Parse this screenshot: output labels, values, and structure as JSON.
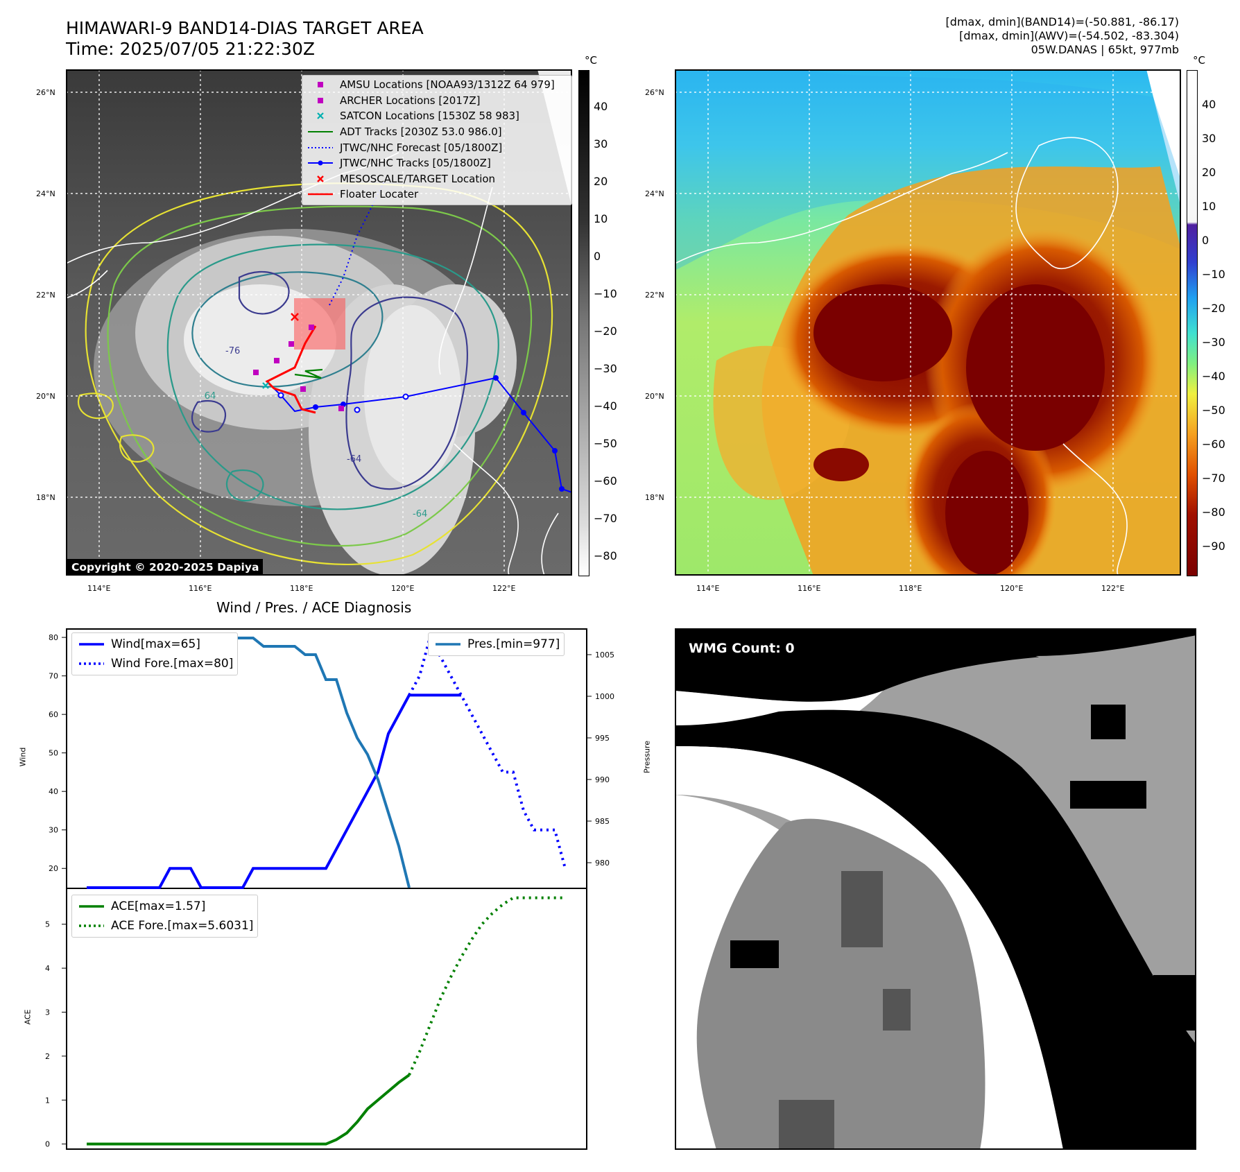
{
  "header": {
    "title_line1": "HIMAWARI-9 BAND14-DIAS TARGET AREA",
    "title_line2": "Time: 2025/07/05 21:22:30Z",
    "stats_line1": "[dmax, dmin](BAND14)=(-50.881, -86.17)",
    "stats_line2": "[dmax, dmin](AWV)=(-54.502, -83.304)",
    "stats_line3": "05W.DANAS | 65kt, 977mb"
  },
  "ir_panel": {
    "lat_labels": [
      "26°N",
      "24°N",
      "22°N",
      "20°N",
      "18°N"
    ],
    "lon_labels": [
      "114°E",
      "116°E",
      "118°E",
      "120°E",
      "122°E"
    ],
    "copyright": "Copyright © 2020-2025 Dapiya",
    "colorbar_unit": "°C",
    "colorbar_ticks": [
      "40",
      "30",
      "20",
      "10",
      "0",
      "−10",
      "−20",
      "−30",
      "−40",
      "−50",
      "−60",
      "−70",
      "−80"
    ],
    "contour_labels": [
      "-64",
      "-64",
      "-64",
      "-76"
    ],
    "legend": [
      {
        "label": "AMSU Locations [NOAA93/1312Z 64 979]",
        "symbol": "square",
        "color": "#c000c0"
      },
      {
        "label": "ARCHER Locations [2017Z]",
        "symbol": "square",
        "color": "#c000c0"
      },
      {
        "label": "SATCON Locations [1530Z 58 983]",
        "symbol": "x",
        "color": "#00b0b0"
      },
      {
        "label": "ADT Tracks [2030Z 53.0 986.0]",
        "symbol": "line",
        "color": "#008000"
      },
      {
        "label": "JTWC/NHC Forecast [05/1800Z]",
        "symbol": "dotted",
        "color": "#0000ff"
      },
      {
        "label": "JTWC/NHC Tracks [05/1800Z]",
        "symbol": "line-dot",
        "color": "#0000ff"
      },
      {
        "label": "MESOSCALE/TARGET Location",
        "symbol": "x",
        "color": "#ff0000"
      },
      {
        "label": "Floater Locater",
        "symbol": "line",
        "color": "#ff0000"
      }
    ]
  },
  "awv_panel": {
    "lat_labels": [
      "26°N",
      "24°N",
      "22°N",
      "20°N",
      "18°N"
    ],
    "lon_labels": [
      "114°E",
      "116°E",
      "118°E",
      "120°E",
      "122°E"
    ],
    "colorbar_unit": "°C",
    "colorbar_ticks": [
      "40",
      "30",
      "20",
      "10",
      "0",
      "−10",
      "−20",
      "−30",
      "−40",
      "−50",
      "−60",
      "−70",
      "−80",
      "−90"
    ]
  },
  "diag_panel": {
    "title": "Wind / Pres. / ACE Diagnosis",
    "wind_axis_label": "Wind",
    "pressure_axis_label": "Pressure",
    "ace_axis_label": "ACE",
    "legend_wind": "Wind[max=65]",
    "legend_wind_fore": "Wind Fore.[max=80]",
    "legend_pres": "Pres.[min=977]",
    "legend_ace": "ACE[max=1.57]",
    "legend_ace_fore": "ACE Fore.[max=5.6031]"
  },
  "wmg_panel": {
    "label": "WMG Count: 0"
  },
  "chart_data": [
    {
      "type": "line",
      "title": "Wind / Pres. / ACE Diagnosis",
      "ylabel": "Wind",
      "ylim": [
        15,
        82
      ],
      "yticks": [
        20,
        30,
        40,
        50,
        60,
        70,
        80
      ],
      "x": [
        0,
        1,
        2,
        3,
        4,
        5,
        6,
        7,
        8,
        9,
        10,
        11,
        12,
        13,
        14,
        15,
        16,
        17,
        18,
        19,
        20,
        21,
        22,
        23,
        24,
        25,
        26,
        27,
        28,
        29,
        30,
        31,
        32,
        33,
        34,
        35,
        36,
        37,
        38,
        39,
        40,
        41,
        42,
        43,
        44,
        45,
        46
      ],
      "series": [
        {
          "name": "Wind[max=65]",
          "color": "#0000ff",
          "style": "solid",
          "x": [
            0,
            2,
            4,
            6,
            7,
            8,
            9,
            10,
            11,
            12,
            13,
            14,
            15,
            16,
            17,
            18,
            19,
            20,
            21,
            22,
            23,
            24,
            25,
            26,
            27,
            28,
            29,
            30,
            31,
            32,
            33,
            34,
            35,
            36
          ],
          "values": [
            15,
            15,
            15,
            15,
            15,
            20,
            20,
            20,
            15,
            15,
            15,
            15,
            15,
            20,
            20,
            20,
            20,
            20,
            20,
            20,
            20,
            25,
            30,
            35,
            40,
            45,
            55,
            60,
            65,
            65,
            65,
            65,
            65,
            65
          ]
        },
        {
          "name": "Wind Fore.[max=80]",
          "color": "#0000ff",
          "style": "dotted",
          "x": [
            31,
            32,
            33,
            34,
            35,
            36,
            37,
            38,
            39,
            40,
            41,
            42,
            43,
            44,
            45,
            46
          ],
          "values": [
            65,
            70,
            80,
            75,
            70,
            65,
            60,
            55,
            50,
            45,
            45,
            35,
            30,
            30,
            30,
            20
          ]
        },
        {
          "name": "Pres.[min=977]",
          "color": "#1f77b4",
          "style": "solid",
          "axis": "right",
          "x": [
            0,
            2,
            4,
            5,
            6,
            7,
            8,
            9,
            10,
            11,
            12,
            13,
            14,
            15,
            16,
            17,
            18,
            19,
            20,
            21,
            22,
            23,
            24,
            25,
            26,
            27,
            28,
            29,
            30,
            31
          ],
          "values": [
            1007,
            1007,
            1007,
            1007,
            1005,
            1005,
            1005,
            1005,
            1005,
            1006,
            1006,
            1006,
            1007,
            1007,
            1007,
            1006,
            1006,
            1006,
            1006,
            1005,
            1005,
            1002,
            1002,
            998,
            995,
            993,
            990,
            986,
            982,
            977
          ]
        }
      ],
      "y2label": "Pressure",
      "y2lim": [
        977,
        1008
      ],
      "y2ticks": [
        980,
        985,
        990,
        995,
        1000,
        1005
      ]
    },
    {
      "type": "line",
      "ylabel": "ACE",
      "ylim": [
        -0.1,
        5.8
      ],
      "yticks": [
        0,
        1,
        2,
        3,
        4,
        5
      ],
      "series": [
        {
          "name": "ACE[max=1.57]",
          "color": "#008000",
          "style": "solid",
          "x": [
            0,
            5,
            10,
            15,
            20,
            22,
            23,
            24,
            25,
            26,
            27,
            28,
            29,
            30,
            31
          ],
          "values": [
            0,
            0,
            0,
            0,
            0,
            0,
            0,
            0.1,
            0.25,
            0.5,
            0.8,
            1.0,
            1.2,
            1.4,
            1.57
          ]
        },
        {
          "name": "ACE Fore.[max=5.6031]",
          "color": "#008000",
          "style": "dotted",
          "x": [
            31,
            32,
            33,
            34,
            35,
            36,
            37,
            38,
            39,
            40,
            41,
            42,
            43,
            44,
            45,
            46
          ],
          "values": [
            1.57,
            2.1,
            2.7,
            3.3,
            3.8,
            4.25,
            4.65,
            5.0,
            5.25,
            5.45,
            5.6,
            5.6,
            5.6,
            5.6,
            5.6,
            5.6
          ]
        }
      ]
    }
  ]
}
